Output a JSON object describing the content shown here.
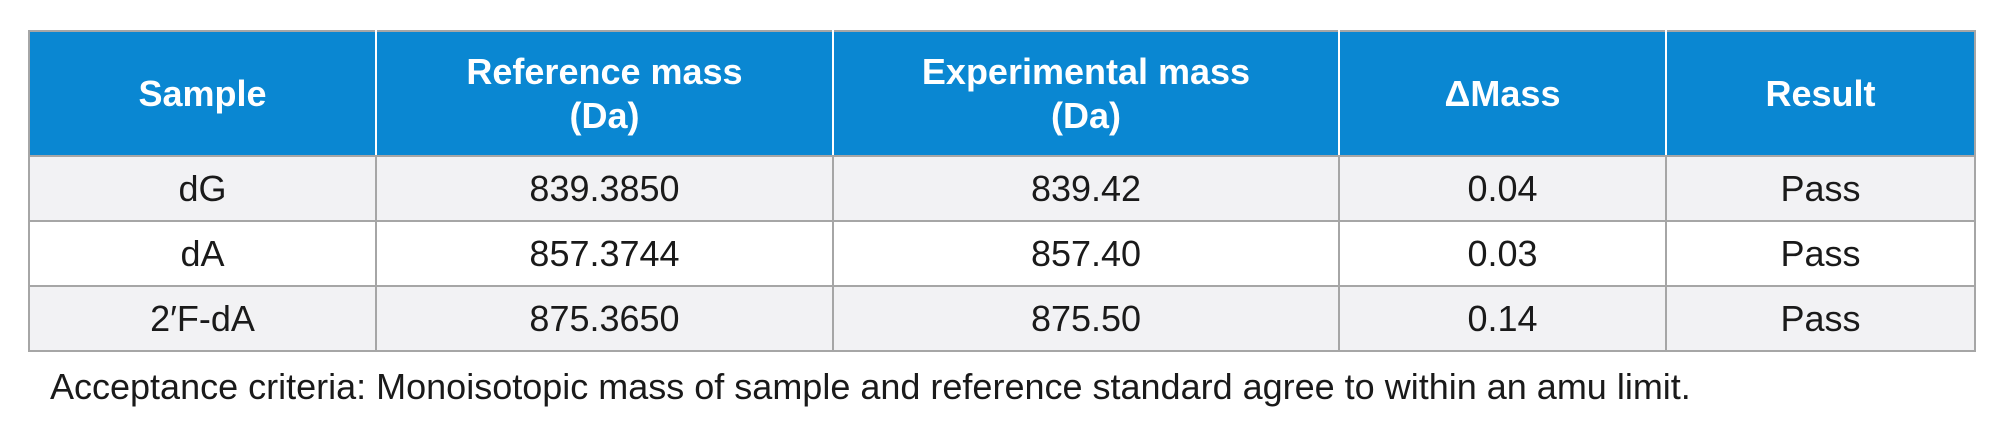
{
  "table": {
    "headers": [
      {
        "line1": "Sample",
        "line2": ""
      },
      {
        "line1": "Reference mass",
        "line2": "(Da)"
      },
      {
        "line1": "Experimental mass",
        "line2": "(Da)"
      },
      {
        "line1": "ΔMass",
        "line2": ""
      },
      {
        "line1": "Result",
        "line2": ""
      }
    ],
    "rows": [
      [
        "dG",
        "839.3850",
        "839.42",
        "0.04",
        "Pass"
      ],
      [
        "dA",
        "857.3744",
        "857.40",
        "0.03",
        "Pass"
      ],
      [
        "2′F-dA",
        "875.3650",
        "875.50",
        "0.14",
        "Pass"
      ]
    ]
  },
  "caption": "Acceptance criteria: Monoisotopic mass of sample and reference standard agree to within an amu limit.",
  "colors": {
    "header_bg": "#0a87d2",
    "header_text": "#ffffff",
    "shaded_row_bg": "#f2f2f4",
    "border": "#a6a6a6"
  }
}
